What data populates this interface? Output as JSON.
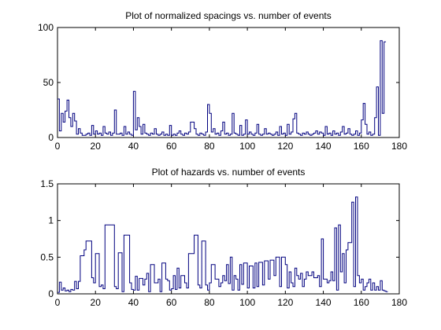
{
  "chart_data": [
    {
      "type": "line",
      "style": "stairs",
      "title": "Plot of normalized spacings vs. number of events",
      "xlabel": "",
      "ylabel": "",
      "xlim": [
        0,
        180
      ],
      "ylim": [
        0,
        100
      ],
      "xticks": [
        0,
        20,
        40,
        60,
        80,
        100,
        120,
        140,
        160,
        180
      ],
      "yticks": [
        0,
        50,
        100
      ],
      "grid": false,
      "line_color": "#00007f",
      "y": [
        35,
        6,
        22,
        14,
        24,
        34,
        18,
        10,
        22,
        15,
        3,
        8,
        4,
        2,
        2,
        3,
        4,
        2,
        11,
        3,
        6,
        3,
        4,
        2,
        10,
        4,
        3,
        5,
        2,
        4,
        25,
        3,
        3,
        4,
        2,
        10,
        3,
        5,
        3,
        2,
        42,
        7,
        18,
        10,
        3,
        12,
        4,
        3,
        2,
        4,
        3,
        8,
        3,
        2,
        3,
        5,
        2,
        3,
        2,
        11,
        2,
        3,
        2,
        4,
        6,
        3,
        2,
        4,
        3,
        5,
        14,
        14,
        8,
        3,
        2,
        4,
        3,
        2,
        5,
        30,
        22,
        5,
        8,
        3,
        4,
        2,
        6,
        14,
        3,
        4,
        2,
        3,
        22,
        4,
        3,
        2,
        11,
        2,
        3,
        16,
        3,
        5,
        3,
        2,
        4,
        12,
        3,
        2,
        3,
        8,
        3,
        4,
        3,
        2,
        3,
        5,
        2,
        10,
        3,
        4,
        2,
        12,
        3,
        5,
        17,
        22,
        4,
        3,
        2,
        4,
        3,
        5,
        3,
        2,
        3,
        4,
        6,
        3,
        5,
        4,
        2,
        10,
        3,
        4,
        2,
        6,
        3,
        4,
        2,
        5,
        10,
        3,
        4,
        8,
        3,
        2,
        3,
        6,
        2,
        4,
        16,
        31,
        12,
        3,
        5,
        2,
        3,
        18,
        46,
        2,
        88,
        22,
        87
      ]
    },
    {
      "type": "line",
      "style": "stairs",
      "title": "Plot of hazards vs. number of events",
      "xlabel": "",
      "ylabel": "",
      "xlim": [
        0,
        180
      ],
      "ylim": [
        0,
        1.5
      ],
      "xticks": [
        0,
        20,
        40,
        60,
        80,
        100,
        120,
        140,
        160,
        180
      ],
      "yticks": [
        0,
        0.5,
        1,
        1.5
      ],
      "grid": false,
      "line_color": "#00007f",
      "y": [
        0.02,
        0.16,
        0.05,
        0.08,
        0.04,
        0.05,
        0.03,
        0.06,
        0.05,
        0.17,
        0.07,
        0.17,
        0.52,
        0.52,
        0.6,
        0.72,
        0.72,
        0.72,
        0.22,
        0.15,
        0.55,
        0.55,
        0.1,
        0.12,
        0.07,
        0.94,
        0.94,
        0.94,
        0.94,
        0.94,
        0.1,
        0.07,
        0.56,
        0.56,
        0.03,
        0.8,
        0.8,
        0.8,
        0.15,
        0.06,
        0.05,
        0.24,
        0.05,
        0.21,
        0.21,
        0.12,
        0.2,
        0.28,
        0.03,
        0.4,
        0.4,
        0.15,
        0.15,
        0.2,
        0.03,
        0.42,
        0.42,
        0.2,
        0.18,
        0.05,
        0.07,
        0.25,
        0.06,
        0.35,
        0.08,
        0.25,
        0.25,
        0.15,
        0.08,
        0.55,
        0.55,
        0.55,
        0.8,
        0.8,
        0.12,
        0.08,
        0.72,
        0.72,
        0.12,
        0.05,
        0.15,
        0.4,
        0.4,
        0.2,
        0.2,
        0.1,
        0.15,
        0.25,
        0.18,
        0.4,
        0.14,
        0.5,
        0.05,
        0.25,
        0.2,
        0.05,
        0.4,
        0.13,
        0.42,
        0.42,
        0.08,
        0.38,
        0.38,
        0.08,
        0.42,
        0.1,
        0.43,
        0.43,
        0.12,
        0.45,
        0.45,
        0.2,
        0.46,
        0.46,
        0.25,
        0.5,
        0.5,
        0.1,
        0.5,
        0.5,
        0.4,
        0.08,
        0.3,
        0.15,
        0.1,
        0.35,
        0.25,
        0.2,
        0.28,
        0.1,
        0.2,
        0.3,
        0.25,
        0.25,
        0.3,
        0.22,
        0.22,
        0.25,
        0.1,
        0.75,
        0.2,
        0.2,
        0.15,
        0.18,
        0.3,
        0.18,
        0.9,
        0.05,
        0.94,
        0.3,
        0.55,
        0.15,
        0.6,
        0.7,
        0.7,
        1.25,
        0.1,
        1.32,
        0.25,
        0.15,
        0.2,
        0.05,
        0.1,
        0.15,
        0.2,
        0.05,
        0.15,
        0.05,
        0.1,
        0.05,
        0.18,
        0.05,
        0.04,
        0.03
      ]
    }
  ]
}
